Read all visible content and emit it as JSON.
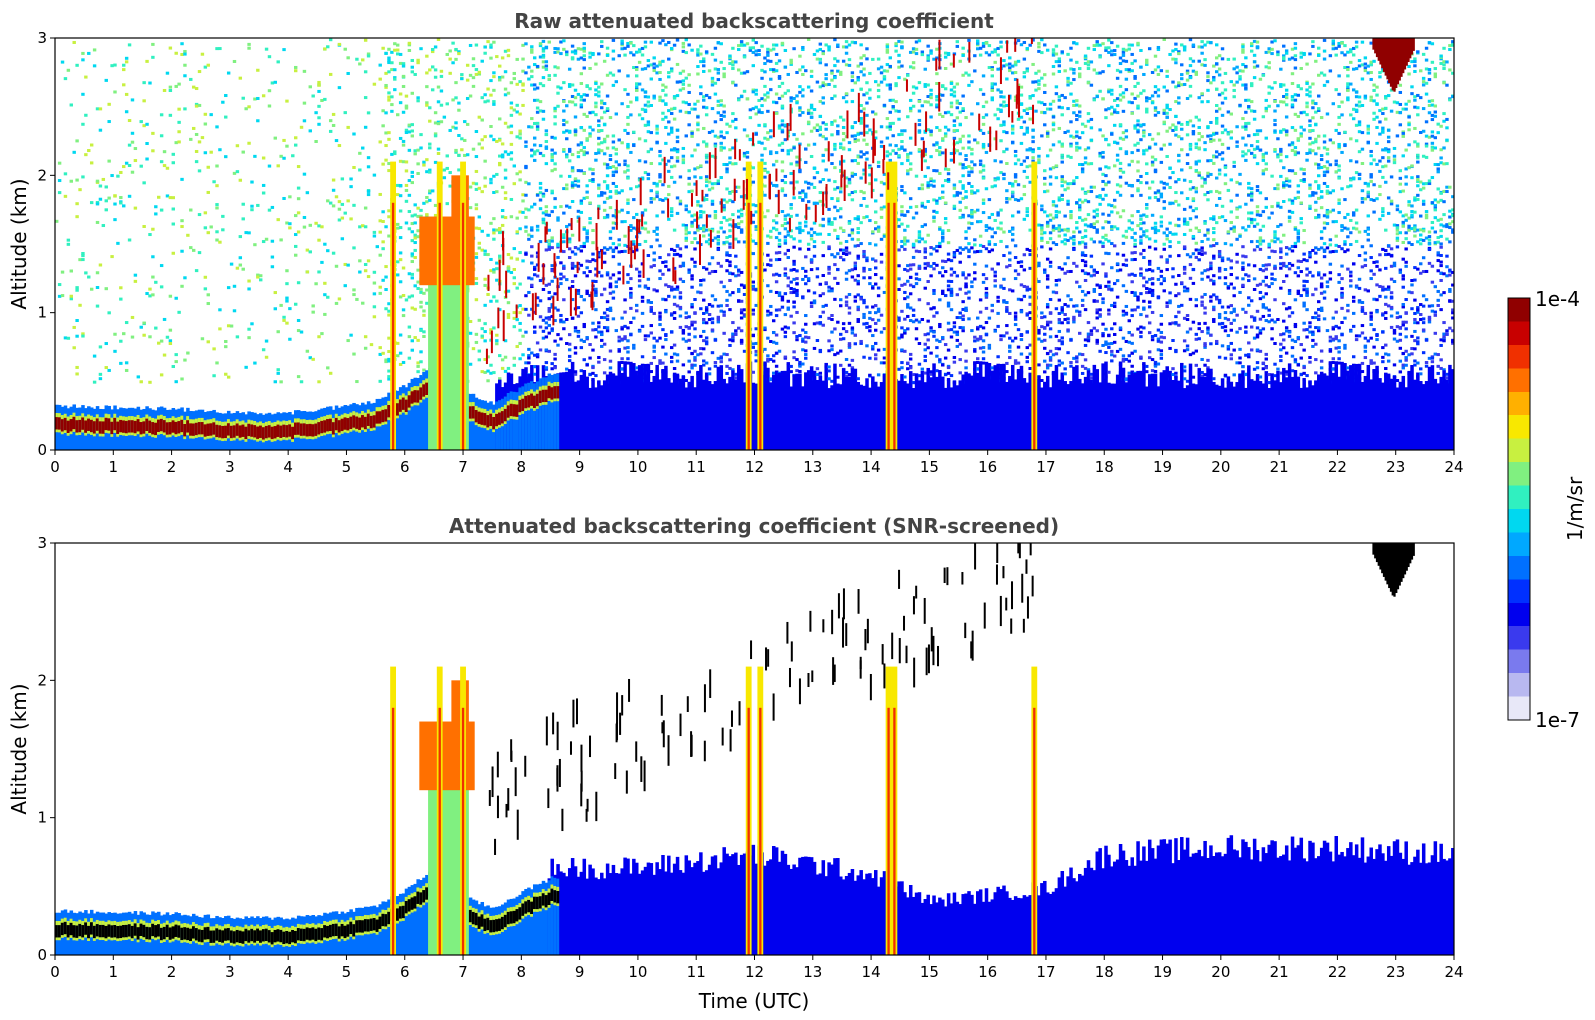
{
  "chart_data": [
    {
      "type": "heatmap",
      "title": "Raw attenuated backscattering coefficient",
      "xlabel": "",
      "ylabel": "Altitude (km)",
      "xlim": [
        0,
        24
      ],
      "ylim": [
        0,
        3
      ],
      "xticks": [
        0,
        1,
        2,
        3,
        4,
        5,
        6,
        7,
        8,
        9,
        10,
        11,
        12,
        13,
        14,
        15,
        16,
        17,
        18,
        19,
        20,
        21,
        22,
        23,
        24
      ],
      "yticks": [
        0,
        1,
        2,
        3
      ],
      "screened": false,
      "features": {
        "boundary_layer": {
          "t": [
            0,
            1,
            2,
            3,
            4,
            5,
            5.5,
            6,
            6.5,
            7,
            7.5,
            8,
            8.5
          ],
          "z": [
            0.18,
            0.17,
            0.16,
            0.13,
            0.13,
            0.18,
            0.22,
            0.33,
            0.5,
            0.28,
            0.2,
            0.32,
            0.42
          ],
          "intensity": "1e-4"
        },
        "thick_cloud_plume": {
          "t_start": 6.4,
          "t_end": 7.1,
          "z_base": 0,
          "z_top": 2.0
        },
        "precip_columns_t": [
          5.8,
          6.6,
          7.0,
          11.9,
          12.1,
          14.3,
          14.4,
          16.8
        ],
        "high_clouds_z_range": [
          1.0,
          3.0
        ],
        "cloud_23h_z": [
          2.6,
          3.0
        ]
      }
    },
    {
      "type": "heatmap",
      "title": "Attenuated backscattering coefficient (SNR-screened)",
      "xlabel": "Time (UTC)",
      "ylabel": "Altitude (km)",
      "xlim": [
        0,
        24
      ],
      "ylim": [
        0,
        3
      ],
      "xticks": [
        0,
        1,
        2,
        3,
        4,
        5,
        6,
        7,
        8,
        9,
        10,
        11,
        12,
        13,
        14,
        15,
        16,
        17,
        18,
        19,
        20,
        21,
        22,
        23,
        24
      ],
      "yticks": [
        0,
        1,
        2,
        3
      ],
      "screened": true,
      "features": {
        "boundary_layer": {
          "t": [
            0,
            1,
            2,
            3,
            4,
            5,
            5.5,
            6,
            6.5,
            7,
            7.5,
            8,
            8.5
          ],
          "z": [
            0.18,
            0.17,
            0.16,
            0.13,
            0.13,
            0.18,
            0.22,
            0.33,
            0.5,
            0.28,
            0.2,
            0.32,
            0.42
          ],
          "intensity": "above 1e-4"
        },
        "aerosol_top_km": {
          "t": [
            8.5,
            10,
            12,
            14,
            15,
            16,
            17,
            18,
            20,
            22,
            24
          ],
          "z": [
            0.65,
            0.65,
            0.75,
            0.6,
            0.4,
            0.45,
            0.5,
            0.75,
            0.8,
            0.8,
            0.75
          ]
        }
      }
    }
  ],
  "colorbar": {
    "min_label": "1e-7",
    "max_label": "1e-4",
    "units": "1/m/sr",
    "colors": [
      "#e8e8f8",
      "#b8b8f0",
      "#7a7aee",
      "#3a3aee",
      "#0000ee",
      "#0030ff",
      "#0070ff",
      "#00a8ff",
      "#00d8f0",
      "#30f0c0",
      "#80f080",
      "#c8f040",
      "#f8e800",
      "#ffb000",
      "#ff7000",
      "#f03000",
      "#c80000",
      "#900000"
    ]
  }
}
